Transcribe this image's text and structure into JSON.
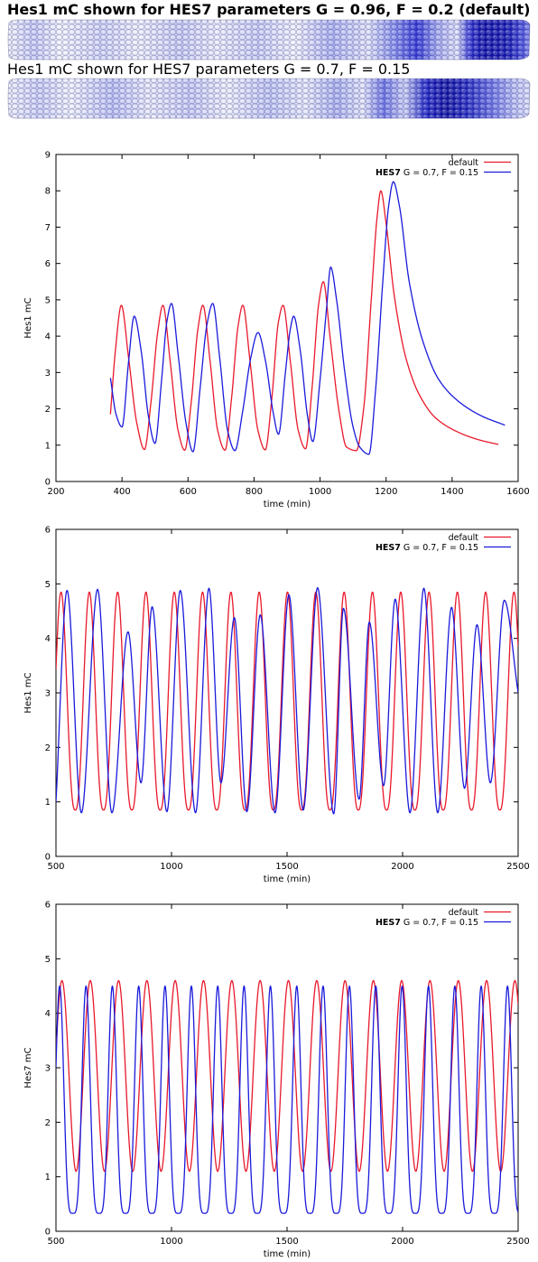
{
  "header": {
    "strip1_title": "Hes1 mC shown for HES7 parameters G = 0.96, F = 0.2 (default)",
    "strip2_title": "Hes1 mC shown for HES7 parameters G = 0.7, F = 0.15"
  },
  "strips": [
    {
      "name": "default",
      "stops": [
        [
          0.0,
          "#eef0fc"
        ],
        [
          0.05,
          "#c4c8f6"
        ],
        [
          0.1,
          "#f0f2fd"
        ],
        [
          0.18,
          "#cdd1f7"
        ],
        [
          0.25,
          "#eceefc"
        ],
        [
          0.33,
          "#c6caf5"
        ],
        [
          0.4,
          "#e8eafc"
        ],
        [
          0.48,
          "#c7cbf6"
        ],
        [
          0.55,
          "#eef0fd"
        ],
        [
          0.62,
          "#aab0f2"
        ],
        [
          0.69,
          "#dde0fa"
        ],
        [
          0.74,
          "#8088ec"
        ],
        [
          0.785,
          "#2a30d6"
        ],
        [
          0.82,
          "#9aa0ef"
        ],
        [
          0.86,
          "#dcdffa"
        ],
        [
          0.885,
          "#2a2ed2"
        ],
        [
          0.91,
          "#0a0ca8"
        ],
        [
          0.96,
          "#1014b2"
        ],
        [
          0.985,
          "#4048dc"
        ],
        [
          1.0,
          "#7a82ea"
        ]
      ]
    },
    {
      "name": "G = 0.7, F = 0.15",
      "stops": [
        [
          0.0,
          "#eceefc"
        ],
        [
          0.06,
          "#c8ccf7"
        ],
        [
          0.12,
          "#eef0fd"
        ],
        [
          0.2,
          "#b8bef5"
        ],
        [
          0.27,
          "#e6e8fb"
        ],
        [
          0.35,
          "#c4c8f6"
        ],
        [
          0.42,
          "#eceefc"
        ],
        [
          0.5,
          "#bcc2f4"
        ],
        [
          0.57,
          "#e4e7fb"
        ],
        [
          0.63,
          "#a8aef0"
        ],
        [
          0.68,
          "#e0e3fa"
        ],
        [
          0.72,
          "#6870e6"
        ],
        [
          0.76,
          "#c8ccf6"
        ],
        [
          0.8,
          "#1a20c6"
        ],
        [
          0.84,
          "#0a0ca0"
        ],
        [
          0.88,
          "#1c22c0"
        ],
        [
          0.93,
          "#6a72e6"
        ],
        [
          0.97,
          "#b4baf3"
        ],
        [
          1.0,
          "#d8dbfa"
        ]
      ]
    }
  ],
  "chart_data": [
    {
      "type": "line",
      "title": "",
      "xlabel": "time (min)",
      "ylabel": "Hes1 mC",
      "xlim": [
        200,
        1600
      ],
      "ylim": [
        0,
        9
      ],
      "xticks": [
        200,
        400,
        600,
        800,
        1000,
        1200,
        1400,
        1600
      ],
      "yticks": [
        0,
        1,
        2,
        3,
        4,
        5,
        6,
        7,
        8,
        9
      ],
      "legend": {
        "position": "top-right",
        "entries": [
          {
            "bold": "",
            "text": "default"
          },
          {
            "bold": "HES7",
            "text": " G = 0.7, F = 0.15"
          }
        ]
      },
      "series": [
        {
          "name": "default",
          "color": "#e8192b",
          "points": [
            [
              365,
              1.85
            ],
            [
              380,
              3.6
            ],
            [
              398,
              4.85
            ],
            [
              420,
              3.4
            ],
            [
              445,
              1.6
            ],
            [
              468,
              0.88
            ],
            [
              488,
              2.2
            ],
            [
              508,
              4.1
            ],
            [
              524,
              4.85
            ],
            [
              546,
              3.3
            ],
            [
              570,
              1.4
            ],
            [
              590,
              0.86
            ],
            [
              610,
              2.2
            ],
            [
              630,
              4.2
            ],
            [
              645,
              4.85
            ],
            [
              667,
              3.3
            ],
            [
              690,
              1.4
            ],
            [
              712,
              0.86
            ],
            [
              732,
              2.3
            ],
            [
              752,
              4.3
            ],
            [
              766,
              4.85
            ],
            [
              788,
              3.3
            ],
            [
              812,
              1.4
            ],
            [
              834,
              0.87
            ],
            [
              854,
              2.3
            ],
            [
              874,
              4.4
            ],
            [
              888,
              4.85
            ],
            [
              910,
              3.3
            ],
            [
              934,
              1.4
            ],
            [
              956,
              0.9
            ],
            [
              976,
              2.6
            ],
            [
              996,
              4.9
            ],
            [
              1010,
              5.5
            ],
            [
              1030,
              4.0
            ],
            [
              1058,
              1.9
            ],
            [
              1080,
              0.95
            ],
            [
              1110,
              0.85
            ],
            [
              1132,
              2.0
            ],
            [
              1155,
              5.0
            ],
            [
              1173,
              7.3
            ],
            [
              1184,
              8.0
            ],
            [
              1200,
              7.1
            ],
            [
              1225,
              5.1
            ],
            [
              1260,
              3.4
            ],
            [
              1300,
              2.4
            ],
            [
              1350,
              1.75
            ],
            [
              1420,
              1.35
            ],
            [
              1480,
              1.15
            ],
            [
              1540,
              1.02
            ]
          ]
        },
        {
          "name": "HES7 G = 0.7, F = 0.15",
          "color": "#1a1adb",
          "points": [
            [
              365,
              2.85
            ],
            [
              382,
              1.85
            ],
            [
              400,
              1.5
            ],
            [
              420,
              3.3
            ],
            [
              437,
              4.55
            ],
            [
              458,
              3.6
            ],
            [
              480,
              1.8
            ],
            [
              500,
              1.05
            ],
            [
              520,
              2.8
            ],
            [
              536,
              4.4
            ],
            [
              550,
              4.9
            ],
            [
              570,
              3.5
            ],
            [
              594,
              1.6
            ],
            [
              615,
              0.82
            ],
            [
              637,
              2.6
            ],
            [
              657,
              4.3
            ],
            [
              675,
              4.9
            ],
            [
              696,
              3.4
            ],
            [
              720,
              1.4
            ],
            [
              742,
              0.85
            ],
            [
              765,
              1.9
            ],
            [
              790,
              3.4
            ],
            [
              812,
              4.1
            ],
            [
              835,
              3.3
            ],
            [
              858,
              1.9
            ],
            [
              874,
              1.3
            ],
            [
              895,
              3.0
            ],
            [
              910,
              4.2
            ],
            [
              920,
              4.55
            ],
            [
              940,
              3.6
            ],
            [
              962,
              1.8
            ],
            [
              978,
              1.1
            ],
            [
              1000,
              2.8
            ],
            [
              1020,
              4.8
            ],
            [
              1032,
              5.9
            ],
            [
              1050,
              5.0
            ],
            [
              1075,
              3.0
            ],
            [
              1100,
              1.5
            ],
            [
              1120,
              0.95
            ],
            [
              1148,
              0.75
            ],
            [
              1168,
              2.5
            ],
            [
              1190,
              5.5
            ],
            [
              1208,
              7.6
            ],
            [
              1222,
              8.25
            ],
            [
              1240,
              7.6
            ],
            [
              1270,
              5.5
            ],
            [
              1310,
              3.9
            ],
            [
              1360,
              2.8
            ],
            [
              1420,
              2.2
            ],
            [
              1490,
              1.8
            ],
            [
              1560,
              1.55
            ]
          ]
        }
      ]
    },
    {
      "type": "line",
      "title": "",
      "xlabel": "time (min)",
      "ylabel": "Hes1 mC",
      "xlim": [
        500,
        2500
      ],
      "ylim": [
        0,
        6
      ],
      "xticks": [
        500,
        1000,
        1500,
        2000,
        2500
      ],
      "yticks": [
        0,
        1,
        2,
        3,
        4,
        5,
        6
      ],
      "legend": {
        "position": "top-right",
        "entries": [
          {
            "bold": "",
            "text": "default"
          },
          {
            "bold": "HES7",
            "text": " G = 0.7, F = 0.15"
          }
        ]
      },
      "series": [
        {
          "name": "default",
          "color": "#e8192b",
          "oscillation": {
            "start": 500,
            "end": 2500,
            "period": 122.5,
            "first_peak": 522,
            "min": 0.85,
            "max": 4.85,
            "start_value": 3.9,
            "sharpness": 1.3
          }
        },
        {
          "name": "HES7 G = 0.7, F = 0.15",
          "color": "#1a1adb",
          "oscillation": {
            "start": 500,
            "end": 2500,
            "first_min_start_value": 1.0
          },
          "peaks": [
            [
              548,
              4.88
            ],
            [
              680,
              4.9
            ],
            [
              812,
              4.12
            ],
            [
              916,
              4.58
            ],
            [
              1038,
              4.88
            ],
            [
              1162,
              4.92
            ],
            [
              1272,
              4.38
            ],
            [
              1384,
              4.43
            ],
            [
              1508,
              4.8
            ],
            [
              1632,
              4.93
            ],
            [
              1744,
              4.55
            ],
            [
              1856,
              4.3
            ],
            [
              1968,
              4.72
            ],
            [
              2092,
              4.92
            ],
            [
              2212,
              4.57
            ],
            [
              2322,
              4.25
            ],
            [
              2440,
              4.7
            ]
          ],
          "troughs": [
            [
              500,
              1.0
            ],
            [
              610,
              0.8
            ],
            [
              742,
              0.8
            ],
            [
              868,
              1.35
            ],
            [
              980,
              0.82
            ],
            [
              1104,
              0.8
            ],
            [
              1214,
              1.35
            ],
            [
              1326,
              0.82
            ],
            [
              1448,
              0.8
            ],
            [
              1570,
              0.85
            ],
            [
              1702,
              0.78
            ],
            [
              1812,
              1.05
            ],
            [
              1918,
              1.3
            ],
            [
              2032,
              0.8
            ],
            [
              2152,
              0.8
            ],
            [
              2268,
              1.25
            ],
            [
              2380,
              1.35
            ],
            [
              2500,
              3.0
            ]
          ]
        }
      ]
    },
    {
      "type": "line",
      "title": "",
      "xlabel": "time (min)",
      "ylabel": "Hes7 mC",
      "xlim": [
        500,
        2500
      ],
      "ylim": [
        0,
        6
      ],
      "xticks": [
        500,
        1000,
        1500,
        2000,
        2500
      ],
      "yticks": [
        0,
        1,
        2,
        3,
        4,
        5,
        6
      ],
      "legend": {
        "position": "top-right",
        "entries": [
          {
            "bold": "",
            "text": "default"
          },
          {
            "bold": "HES7",
            "text": " G = 0.7, F = 0.15"
          }
        ]
      },
      "series": [
        {
          "name": "default",
          "color": "#e8192b",
          "oscillation": {
            "start": 500,
            "end": 2500,
            "period": 122.5,
            "first_peak": 526,
            "min": 1.1,
            "max": 4.6,
            "start_value": 3.1,
            "sharpness": 1.0
          }
        },
        {
          "name": "HES7 G = 0.7, F = 0.15",
          "color": "#1a1adb",
          "oscillation": {
            "start": 500,
            "end": 2500,
            "period": 114,
            "first_peak": 516,
            "min": 0.33,
            "max": 4.5,
            "start_value": 3.2,
            "sharpness": 2.2
          }
        }
      ]
    }
  ]
}
